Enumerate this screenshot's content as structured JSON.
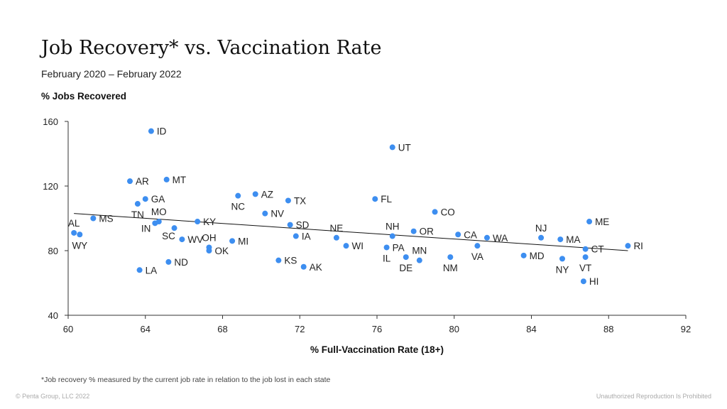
{
  "header": {
    "title": "Job Recovery* vs. Vaccination Rate",
    "subtitle": "February 2020 – February 2022"
  },
  "footer": {
    "footnote": "*Job recovery % measured by the current job rate in relation to the job lost in each state",
    "copyright": "© Penta Group, LLC 2022",
    "rights": "Unauthorized Reproduction Is Prohibited"
  },
  "colors": {
    "point": "#3d8ef0",
    "trend": "#111111",
    "axis": "#333333"
  },
  "chart_data": {
    "type": "scatter",
    "xlabel": "% Full-Vaccination Rate (18+)",
    "ylabel": "% Jobs Recovered",
    "xlim": [
      60,
      92
    ],
    "ylim": [
      40,
      160
    ],
    "xticks": [
      60,
      64,
      68,
      72,
      76,
      80,
      84,
      88,
      92
    ],
    "yticks": [
      40,
      80,
      120,
      160
    ],
    "grid": false,
    "trendline": {
      "x": [
        60.3,
        89.0
      ],
      "y": [
        103,
        80
      ]
    },
    "points": [
      {
        "label": "ID",
        "x": 64.3,
        "y": 154,
        "pos": "right"
      },
      {
        "label": "UT",
        "x": 76.8,
        "y": 144,
        "pos": "right"
      },
      {
        "label": "AR",
        "x": 63.2,
        "y": 123,
        "pos": "right"
      },
      {
        "label": "MT",
        "x": 65.1,
        "y": 124,
        "pos": "right"
      },
      {
        "label": "GA",
        "x": 64.0,
        "y": 112,
        "pos": "right"
      },
      {
        "label": "TN",
        "x": 63.6,
        "y": 109,
        "pos": "below"
      },
      {
        "label": "MO",
        "x": 64.7,
        "y": 98,
        "pos": "above"
      },
      {
        "label": "IN",
        "x": 64.5,
        "y": 97,
        "pos": "left-below"
      },
      {
        "label": "SC",
        "x": 65.5,
        "y": 94,
        "pos": "below-left"
      },
      {
        "label": "KY",
        "x": 66.7,
        "y": 98,
        "pos": "right"
      },
      {
        "label": "MS",
        "x": 61.3,
        "y": 100,
        "pos": "right"
      },
      {
        "label": "AL",
        "x": 60.3,
        "y": 91,
        "pos": "above"
      },
      {
        "label": "WY",
        "x": 60.6,
        "y": 90,
        "pos": "below"
      },
      {
        "label": "WV",
        "x": 65.9,
        "y": 87,
        "pos": "right"
      },
      {
        "label": "OH",
        "x": 67.3,
        "y": 82,
        "pos": "above"
      },
      {
        "label": "OK",
        "x": 67.3,
        "y": 80,
        "pos": "right"
      },
      {
        "label": "MI",
        "x": 68.5,
        "y": 86,
        "pos": "right"
      },
      {
        "label": "NC",
        "x": 68.8,
        "y": 114,
        "pos": "below"
      },
      {
        "label": "AZ",
        "x": 69.7,
        "y": 115,
        "pos": "right"
      },
      {
        "label": "NV",
        "x": 70.2,
        "y": 103,
        "pos": "right"
      },
      {
        "label": "TX",
        "x": 71.4,
        "y": 111,
        "pos": "right"
      },
      {
        "label": "SD",
        "x": 71.5,
        "y": 96,
        "pos": "right"
      },
      {
        "label": "IA",
        "x": 71.8,
        "y": 89,
        "pos": "right"
      },
      {
        "label": "ND",
        "x": 65.2,
        "y": 73,
        "pos": "right"
      },
      {
        "label": "LA",
        "x": 63.7,
        "y": 68,
        "pos": "right"
      },
      {
        "label": "KS",
        "x": 70.9,
        "y": 74,
        "pos": "right"
      },
      {
        "label": "AK",
        "x": 72.2,
        "y": 70,
        "pos": "right"
      },
      {
        "label": "NE",
        "x": 73.9,
        "y": 88,
        "pos": "above"
      },
      {
        "label": "WI",
        "x": 74.4,
        "y": 83,
        "pos": "right"
      },
      {
        "label": "FL",
        "x": 75.9,
        "y": 112,
        "pos": "right"
      },
      {
        "label": "NH",
        "x": 76.8,
        "y": 89,
        "pos": "above"
      },
      {
        "label": "PA",
        "x": 76.5,
        "y": 82,
        "pos": "right"
      },
      {
        "label": "IL",
        "x": 76.5,
        "y": 82,
        "pos": "below"
      },
      {
        "label": "DE",
        "x": 77.5,
        "y": 76,
        "pos": "below"
      },
      {
        "label": "MN",
        "x": 78.2,
        "y": 74,
        "pos": "above"
      },
      {
        "label": "OR",
        "x": 77.9,
        "y": 92,
        "pos": "right"
      },
      {
        "label": "CO",
        "x": 79.0,
        "y": 104,
        "pos": "right"
      },
      {
        "label": "CA",
        "x": 80.2,
        "y": 90,
        "pos": "right"
      },
      {
        "label": "NM",
        "x": 79.8,
        "y": 76,
        "pos": "below"
      },
      {
        "label": "VA",
        "x": 81.2,
        "y": 83,
        "pos": "below"
      },
      {
        "label": "WA",
        "x": 81.7,
        "y": 88,
        "pos": "right"
      },
      {
        "label": "MD",
        "x": 83.6,
        "y": 77,
        "pos": "right"
      },
      {
        "label": "NJ",
        "x": 84.5,
        "y": 88,
        "pos": "above"
      },
      {
        "label": "MA",
        "x": 85.5,
        "y": 87,
        "pos": "right"
      },
      {
        "label": "NY",
        "x": 85.6,
        "y": 75,
        "pos": "below"
      },
      {
        "label": "ME",
        "x": 87.0,
        "y": 98,
        "pos": "right"
      },
      {
        "label": "CT",
        "x": 86.8,
        "y": 81,
        "pos": "right"
      },
      {
        "label": "VT",
        "x": 86.8,
        "y": 76,
        "pos": "below"
      },
      {
        "label": "HI",
        "x": 86.7,
        "y": 61,
        "pos": "right"
      },
      {
        "label": "RI",
        "x": 89.0,
        "y": 83,
        "pos": "right"
      }
    ]
  }
}
